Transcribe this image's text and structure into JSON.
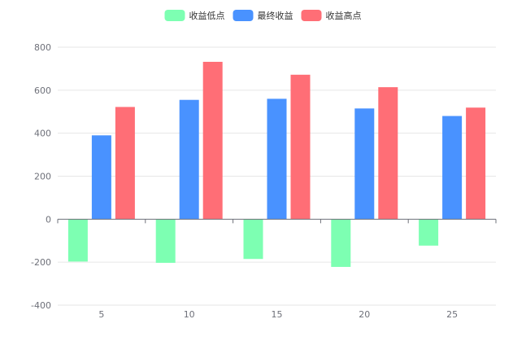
{
  "chart_data": {
    "type": "bar",
    "categories": [
      "5",
      "10",
      "15",
      "20",
      "25"
    ],
    "series": [
      {
        "name": "收益低点",
        "color": "#7dffb2",
        "values": [
          -197,
          -203,
          -185,
          -222,
          -123
        ]
      },
      {
        "name": "最终收益",
        "color": "#4992ff",
        "values": [
          390,
          555,
          560,
          515,
          480
        ]
      },
      {
        "name": "收益高点",
        "color": "#ff6e76",
        "values": [
          522,
          732,
          672,
          614,
          519
        ]
      }
    ],
    "y_ticks": [
      -400,
      -200,
      0,
      200,
      400,
      600,
      800
    ],
    "ylim": [
      -400,
      800
    ],
    "grid": true,
    "legend_position": "top-center"
  }
}
